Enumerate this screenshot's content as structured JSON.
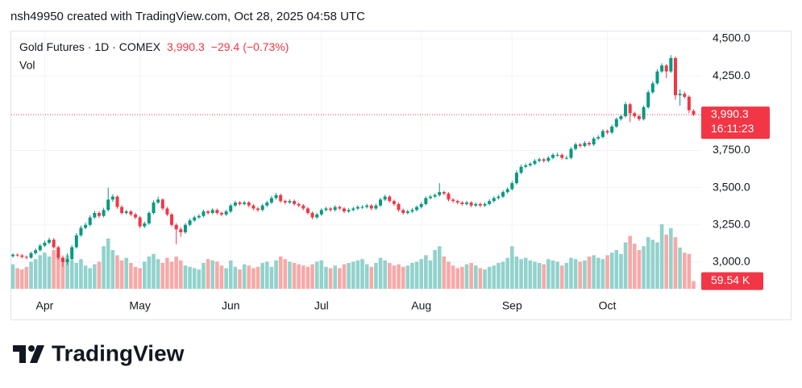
{
  "author_line": "nsh49950 created with TradingView.com, Oct 28, 2025 04:58 UTC",
  "brand": "TradingView",
  "chart_data": {
    "type": "candlestick",
    "title": "Gold Futures · 1D · COMEX",
    "last_price": {
      "value": 3990.3,
      "label": "3,990.3"
    },
    "change": {
      "value": -29.4,
      "label": "−29.4"
    },
    "change_percent": {
      "value": -0.73,
      "label": "(−0.73%)"
    },
    "countdown": "16:11:23",
    "volume_title": "Vol",
    "last_volume": {
      "value": 59.54,
      "label": "59.54 K"
    },
    "up_color": "#089981",
    "down_color": "#f23645",
    "volume_up_color": "#92d2cc",
    "volume_down_color": "#f7a9a7",
    "grid": true,
    "ylim": [
      2783,
      4554
    ],
    "volume_lim": [
      0,
      2000
    ],
    "yticks": [
      {
        "value": 3000,
        "label": "3,000.0"
      },
      {
        "value": 3250,
        "label": "3,250.0"
      },
      {
        "value": 3500,
        "label": "3,500.0"
      },
      {
        "value": 3750,
        "label": "3,750.0"
      },
      {
        "value": 4250,
        "label": "4,250.0"
      },
      {
        "value": 4500,
        "label": "4,500.0"
      }
    ],
    "categories": [
      null,
      null,
      null,
      null,
      null,
      null,
      null,
      "Apr",
      null,
      null,
      null,
      null,
      null,
      null,
      null,
      null,
      null,
      null,
      null,
      null,
      null,
      null,
      null,
      null,
      null,
      null,
      null,
      null,
      "May",
      null,
      null,
      null,
      null,
      null,
      null,
      null,
      null,
      null,
      null,
      null,
      null,
      null,
      null,
      null,
      null,
      null,
      null,
      null,
      "Jun",
      null,
      null,
      null,
      null,
      null,
      null,
      null,
      null,
      null,
      null,
      null,
      null,
      null,
      null,
      null,
      null,
      null,
      null,
      null,
      "Jul",
      null,
      null,
      null,
      null,
      null,
      null,
      null,
      null,
      null,
      null,
      null,
      null,
      null,
      null,
      null,
      null,
      null,
      null,
      null,
      null,
      null,
      "Aug",
      null,
      null,
      null,
      null,
      null,
      null,
      null,
      null,
      null,
      null,
      null,
      null,
      null,
      null,
      null,
      null,
      null,
      null,
      null,
      "Sep",
      null,
      null,
      null,
      null,
      null,
      null,
      null,
      null,
      null,
      null,
      null,
      null,
      null,
      null,
      null,
      null,
      null,
      null,
      null,
      null,
      "Oct",
      null,
      null,
      null,
      null,
      null,
      null,
      null,
      null,
      null,
      null,
      null,
      null,
      null,
      null,
      null,
      null,
      null,
      null,
      null
    ],
    "open": [
      3040,
      3050,
      3045,
      3035,
      3030,
      3060,
      3080,
      3110,
      3130,
      3150,
      3100,
      3030,
      3000,
      3020,
      3100,
      3180,
      3230,
      3250,
      3300,
      3330,
      3310,
      3350,
      3420,
      3440,
      3370,
      3330,
      3340,
      3320,
      3300,
      3240,
      3260,
      3330,
      3400,
      3420,
      3360,
      3320,
      3250,
      3220,
      3200,
      3250,
      3280,
      3300,
      3310,
      3340,
      3330,
      3350,
      3330,
      3320,
      3340,
      3380,
      3400,
      3390,
      3400,
      3380,
      3360,
      3350,
      3380,
      3400,
      3430,
      3450,
      3410,
      3400,
      3410,
      3390,
      3380,
      3360,
      3330,
      3300,
      3320,
      3350,
      3360,
      3350,
      3370,
      3360,
      3340,
      3350,
      3360,
      3370,
      3370,
      3380,
      3360,
      3380,
      3420,
      3440,
      3410,
      3390,
      3350,
      3330,
      3340,
      3350,
      3370,
      3390,
      3430,
      3440,
      3450,
      3470,
      3460,
      3420,
      3410,
      3400,
      3390,
      3400,
      3380,
      3390,
      3380,
      3390,
      3410,
      3430,
      3440,
      3470,
      3490,
      3530,
      3600,
      3640,
      3650,
      3660,
      3680,
      3690,
      3680,
      3700,
      3720,
      3720,
      3700,
      3700,
      3760,
      3790,
      3780,
      3800,
      3790,
      3830,
      3840,
      3880,
      3870,
      3910,
      3960,
      3980,
      4060,
      4000,
      3980,
      3960,
      4040,
      4140,
      4200,
      4280,
      4320,
      4280,
      4370,
      4120,
      4130,
      4110,
      4015
    ],
    "high": [
      3060,
      3058,
      3055,
      3045,
      3070,
      3092,
      3122,
      3145,
      3165,
      3162,
      3110,
      3045,
      3060,
      3115,
      3195,
      3245,
      3265,
      3315,
      3345,
      3342,
      3365,
      3500,
      3455,
      3448,
      3382,
      3352,
      3350,
      3332,
      3310,
      3272,
      3342,
      3415,
      3440,
      3428,
      3372,
      3330,
      3262,
      3235,
      3262,
      3292,
      3312,
      3322,
      3352,
      3350,
      3362,
      3360,
      3340,
      3352,
      3392,
      3412,
      3410,
      3412,
      3410,
      3390,
      3370,
      3392,
      3412,
      3445,
      3465,
      3460,
      3420,
      3422,
      3420,
      3400,
      3390,
      3370,
      3340,
      3332,
      3362,
      3372,
      3370,
      3382,
      3380,
      3370,
      3362,
      3372,
      3382,
      3382,
      3392,
      3390,
      3392,
      3432,
      3452,
      3450,
      3420,
      3400,
      3360,
      3352,
      3362,
      3382,
      3402,
      3442,
      3452,
      3462,
      3530,
      3480,
      3470,
      3430,
      3420,
      3410,
      3412,
      3410,
      3402,
      3400,
      3402,
      3422,
      3442,
      3452,
      3482,
      3502,
      3545,
      3615,
      3655,
      3662,
      3672,
      3692,
      3702,
      3700,
      3712,
      3732,
      3735,
      3730,
      3715,
      3772,
      3802,
      3800,
      3812,
      3810,
      3842,
      3852,
      3892,
      3890,
      3922,
      3972,
      3992,
      4075,
      4070,
      4010,
      3990,
      4052,
      4155,
      4215,
      4295,
      4335,
      4330,
      4390,
      4380,
      4160,
      4145,
      4120,
      4025
    ],
    "low": [
      3030,
      3036,
      3025,
      3020,
      3022,
      3050,
      3070,
      3100,
      3118,
      3090,
      3015,
      2970,
      2980,
      3010,
      3090,
      3170,
      3220,
      3240,
      3290,
      3298,
      3300,
      3340,
      3405,
      3358,
      3318,
      3318,
      3308,
      3288,
      3228,
      3228,
      3250,
      3320,
      3390,
      3348,
      3308,
      3238,
      3120,
      3170,
      3190,
      3240,
      3270,
      3290,
      3300,
      3318,
      3320,
      3318,
      3308,
      3310,
      3330,
      3370,
      3378,
      3380,
      3368,
      3348,
      3338,
      3340,
      3370,
      3390,
      3420,
      3398,
      3388,
      3390,
      3378,
      3368,
      3348,
      3318,
      3288,
      3290,
      3310,
      3340,
      3338,
      3340,
      3348,
      3328,
      3330,
      3340,
      3350,
      3358,
      3360,
      3348,
      3350,
      3370,
      3410,
      3398,
      3378,
      3338,
      3318,
      3320,
      3330,
      3340,
      3360,
      3380,
      3420,
      3430,
      3440,
      3448,
      3408,
      3398,
      3388,
      3378,
      3380,
      3368,
      3370,
      3368,
      3370,
      3380,
      3400,
      3420,
      3430,
      3460,
      3480,
      3520,
      3590,
      3630,
      3640,
      3650,
      3670,
      3668,
      3670,
      3690,
      3708,
      3688,
      3688,
      3690,
      3750,
      3768,
      3770,
      3778,
      3780,
      3820,
      3830,
      3858,
      3860,
      3900,
      3950,
      3970,
      3940,
      3968,
      3948,
      3950,
      4030,
      4130,
      4190,
      4270,
      4235,
      4270,
      4090,
      4050,
      4098,
      4000,
      3980
    ],
    "close": [
      3050,
      3045,
      3035,
      3030,
      3060,
      3080,
      3110,
      3130,
      3150,
      3100,
      3030,
      3000,
      3020,
      3100,
      3180,
      3230,
      3250,
      3300,
      3330,
      3310,
      3350,
      3420,
      3440,
      3370,
      3330,
      3340,
      3320,
      3300,
      3240,
      3260,
      3330,
      3400,
      3420,
      3360,
      3320,
      3250,
      3220,
      3200,
      3250,
      3280,
      3300,
      3310,
      3340,
      3330,
      3350,
      3330,
      3320,
      3340,
      3380,
      3400,
      3390,
      3400,
      3380,
      3360,
      3350,
      3380,
      3400,
      3430,
      3450,
      3410,
      3400,
      3410,
      3390,
      3380,
      3360,
      3330,
      3300,
      3320,
      3350,
      3360,
      3350,
      3370,
      3360,
      3340,
      3350,
      3360,
      3370,
      3370,
      3380,
      3360,
      3380,
      3420,
      3440,
      3410,
      3390,
      3350,
      3330,
      3340,
      3350,
      3370,
      3390,
      3430,
      3440,
      3450,
      3470,
      3460,
      3420,
      3410,
      3400,
      3390,
      3400,
      3380,
      3390,
      3380,
      3390,
      3410,
      3430,
      3440,
      3470,
      3490,
      3530,
      3600,
      3640,
      3650,
      3660,
      3680,
      3690,
      3680,
      3700,
      3720,
      3720,
      3700,
      3700,
      3760,
      3790,
      3780,
      3800,
      3790,
      3830,
      3840,
      3880,
      3870,
      3910,
      3960,
      3980,
      4060,
      4000,
      3980,
      3960,
      4040,
      4140,
      4200,
      4280,
      4320,
      4280,
      4370,
      4120,
      4130,
      4110,
      4019.7,
      3990.3
    ],
    "volume": [
      190,
      160,
      150,
      170,
      210,
      230,
      260,
      280,
      250,
      300,
      270,
      240,
      260,
      220,
      200,
      230,
      180,
      160,
      190,
      210,
      330,
      390,
      300,
      260,
      220,
      240,
      200,
      170,
      160,
      210,
      250,
      270,
      230,
      200,
      240,
      210,
      250,
      220,
      180,
      170,
      160,
      150,
      200,
      230,
      220,
      210,
      180,
      160,
      220,
      170,
      150,
      190,
      180,
      160,
      170,
      200,
      210,
      170,
      220,
      250,
      230,
      210,
      200,
      190,
      180,
      170,
      190,
      210,
      220,
      170,
      160,
      180,
      160,
      190,
      200,
      210,
      220,
      230,
      190,
      170,
      200,
      240,
      220,
      200,
      180,
      190,
      170,
      180,
      200,
      210,
      230,
      260,
      220,
      300,
      330,
      250,
      210,
      180,
      160,
      170,
      190,
      200,
      180,
      160,
      150,
      170,
      180,
      200,
      210,
      240,
      330,
      250,
      230,
      240,
      220,
      210,
      200,
      190,
      230,
      220,
      210,
      180,
      200,
      240,
      230,
      210,
      220,
      250,
      260,
      240,
      230,
      260,
      280,
      300,
      270,
      360,
      410,
      350,
      300,
      330,
      400,
      380,
      360,
      500,
      420,
      470,
      400,
      320,
      280,
      270,
      59.54
    ]
  }
}
